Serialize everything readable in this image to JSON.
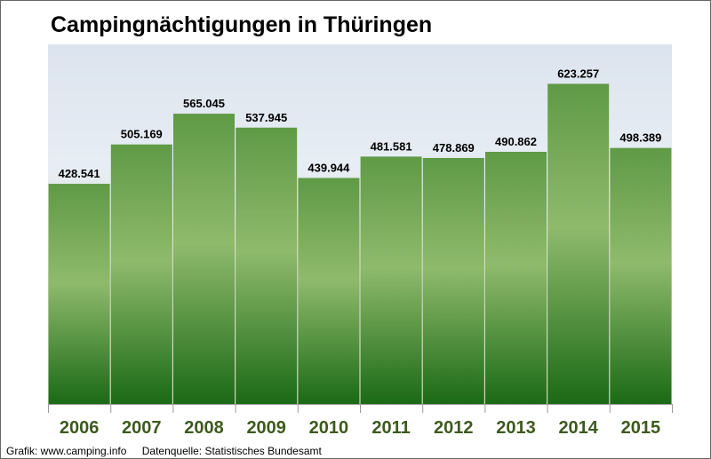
{
  "chart_data": {
    "type": "bar",
    "title": "Campingnächtigungen in Thüringen",
    "categories": [
      "2006",
      "2007",
      "2008",
      "2009",
      "2010",
      "2011",
      "2012",
      "2013",
      "2014",
      "2015"
    ],
    "values": [
      428541,
      505169,
      565045,
      537945,
      439944,
      481581,
      478869,
      490862,
      623257,
      498389
    ],
    "labels": [
      "428.541",
      "505.169",
      "565.045",
      "537.945",
      "439.944",
      "481.581",
      "478.869",
      "490.862",
      "623.257",
      "498.389"
    ],
    "xlabel": "",
    "ylabel": "",
    "ylim": [
      0,
      700000
    ],
    "grid": false,
    "legend": "none",
    "colors": {
      "bar_top": "#6aa04e",
      "bar_mid": "#8cb86a",
      "bar_bottom": "#1e6b17",
      "tick_label": "#3d5a1e"
    }
  },
  "footer": {
    "credit": "Grafik: www.camping.info",
    "source": "Datenquelle:  Statistisches Bundesamt"
  }
}
